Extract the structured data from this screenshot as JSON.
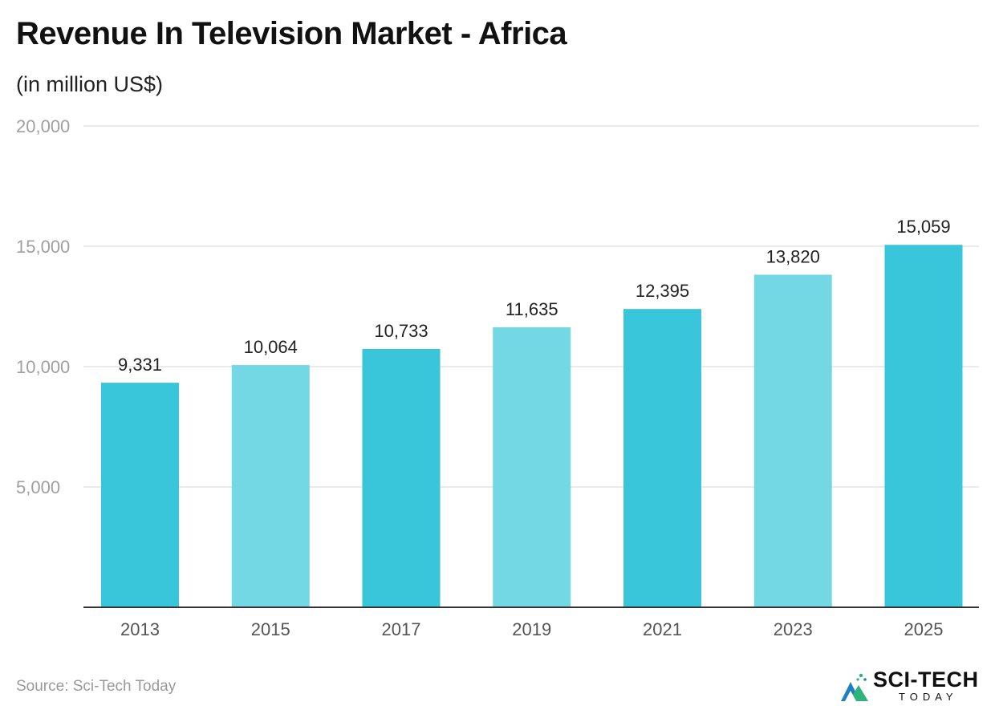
{
  "header": {
    "title": "Revenue In Television Market - Africa",
    "subtitle": "(in million US$)"
  },
  "footer": {
    "source": "Source: Sci-Tech Today",
    "logo_main": "SCI-TECH",
    "logo_sub": "TODAY"
  },
  "colors": {
    "bar_primary": "#39c5da",
    "bar_secondary": "#74d8e4",
    "grid": "#e3e3e3",
    "axis": "#333333"
  },
  "chart_data": {
    "type": "bar",
    "title": "Revenue In Television Market - Africa",
    "subtitle": "(in million US$)",
    "categories": [
      "2013",
      "2015",
      "2017",
      "2019",
      "2021",
      "2023",
      "2025"
    ],
    "values": [
      9331,
      10064,
      10733,
      11635,
      12395,
      13820,
      15059
    ],
    "value_labels": [
      "9,331",
      "10,064",
      "10,733",
      "11,635",
      "12,395",
      "13,820",
      "15,059"
    ],
    "ylim": [
      0,
      20000
    ],
    "yticks": [
      5000,
      10000,
      15000,
      20000
    ],
    "ytick_labels": [
      "5,000",
      "10,000",
      "15,000",
      "20,000"
    ],
    "grid": true,
    "legend": "none",
    "xlabel": "",
    "ylabel": ""
  }
}
